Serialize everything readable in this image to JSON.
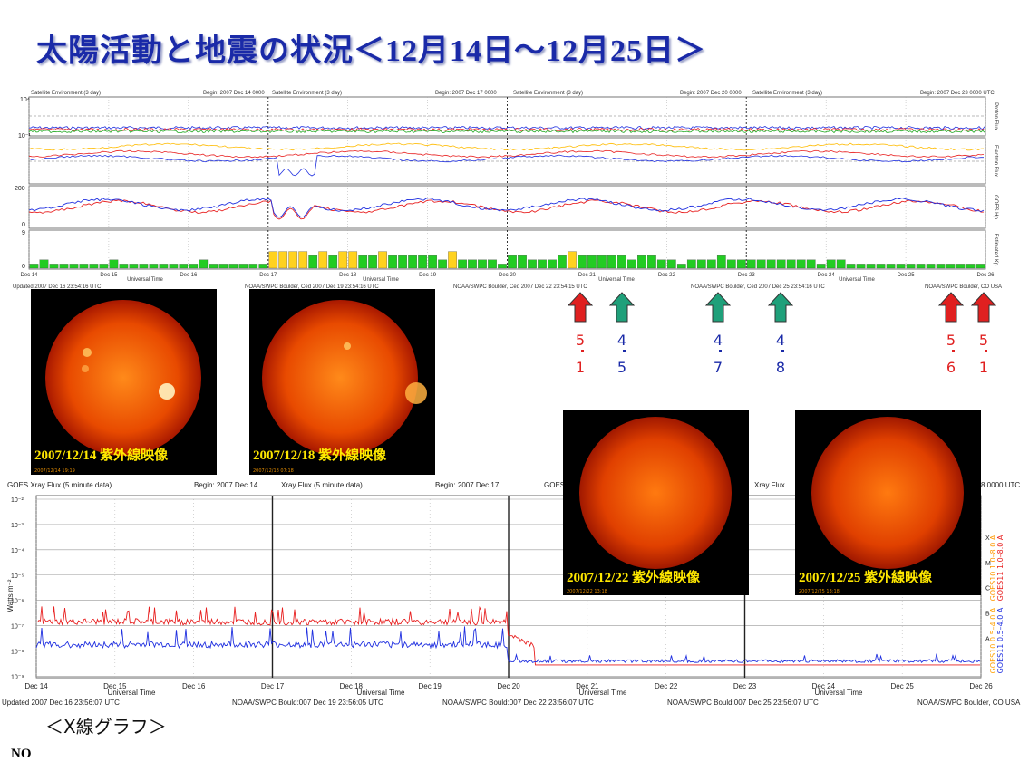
{
  "title": "太陽活動と地震の状況＜12月14日～12月25日＞",
  "top_chart": {
    "panel_headers": [
      {
        "left": "Satellite Environment (3 day)",
        "begin": "Begin:  2007 Dec 14 0000"
      },
      {
        "left": "Satellite Environment (3 day)",
        "begin": "Begin:  2007 Dec 17 0000"
      },
      {
        "left": "Satellite Environment (3 day)",
        "begin": "Begin:  2007 Dec 20 0000"
      },
      {
        "left": "Satellite Environment (3 day)",
        "begin": "Begin:  2007 Dec 23 0000 UTC"
      }
    ],
    "row_labels": [
      "Proton Flux",
      "Electron Flux",
      "GOES Hp",
      "Estimated Kp"
    ],
    "y_ticks": {
      "proton": [
        "10⁴",
        "10⁻¹"
      ],
      "hp": [
        "200",
        "0"
      ],
      "kp": [
        "9",
        "0"
      ]
    },
    "x_ticks": [
      "Dec 14",
      "Dec 15",
      "Dec 16",
      "Dec 17",
      "Dec 18",
      "Dec 19",
      "Dec 20",
      "Dec 21",
      "Dec 22",
      "Dec 23",
      "Dec 24",
      "Dec 25",
      "Dec 26"
    ],
    "axis_label": "Universal Time",
    "footers": [
      "Updated 2007 Dec 16 23:54:16 UTC",
      "NOAA/SWPC Boulder, Ced 2007 Dec 19 23:54:16 UTC",
      "NOAA/SWPC Boulder, Ced 2007 Dec 22 23:54:15 UTC",
      "NOAA/SWPC Boulder, Ced 2007 Dec 25 23:54:16 UTC",
      "NOAA/SWPC Boulder, CO USA"
    ],
    "kp_values": [
      1,
      2,
      1,
      1,
      1,
      1,
      1,
      1,
      2,
      1,
      1,
      1,
      1,
      1,
      1,
      1,
      1,
      2,
      1,
      1,
      1,
      1,
      1,
      1,
      4,
      4,
      4,
      4,
      3,
      4,
      3,
      4,
      4,
      3,
      3,
      4,
      3,
      3,
      3,
      3,
      3,
      2,
      4,
      2,
      2,
      2,
      2,
      1,
      3,
      3,
      2,
      2,
      2,
      3,
      4,
      3,
      3,
      3,
      3,
      3,
      2,
      3,
      3,
      2,
      2,
      1,
      2,
      2,
      2,
      3,
      2,
      2,
      2,
      2,
      2,
      2,
      2,
      2,
      2,
      1,
      2,
      2,
      1,
      1,
      1,
      1,
      1,
      1,
      1,
      1,
      1,
      1,
      1,
      1,
      1,
      1
    ],
    "kp_colors": {
      "quiet": "#22cc22",
      "unsettled": "#ffd21f"
    }
  },
  "arrows": [
    {
      "color": "red",
      "top": "5",
      "bottom": "1"
    },
    {
      "color": "green",
      "top": "4",
      "bottom": "5"
    },
    {
      "color": "green",
      "top": "4",
      "bottom": "7"
    },
    {
      "color": "green",
      "top": "4",
      "bottom": "8"
    },
    {
      "color": "red",
      "top": "5",
      "bottom": "6"
    },
    {
      "color": "red",
      "top": "5",
      "bottom": "1"
    }
  ],
  "sun_images": [
    {
      "label": "2007/12/14  紫外線映像",
      "stamp": "2007/12/14 19:19"
    },
    {
      "label": "2007/12/18  紫外線映像",
      "stamp": "2007/12/18 07:18"
    },
    {
      "label": "2007/12/22  紫外線映像",
      "stamp": "2007/12/22 13:18"
    },
    {
      "label": "2007/12/25  紫外線映像",
      "stamp": "2007/12/25 13:18"
    }
  ],
  "xray_chart": {
    "panel_headers": [
      {
        "left": "GOES Xray Flux (5 minute data)",
        "begin": "Begin:  2007 Dec 14"
      },
      {
        "left": "Xray Flux (5 minute data)",
        "begin": "Begin:  2007 Dec 17"
      },
      {
        "left": "GOES Xray",
        "begin": ""
      },
      {
        "left": "Xray Flux",
        "begin": "8 0000 UTC"
      }
    ],
    "y_ticks": [
      "10⁻²",
      "10⁻³",
      "10⁻⁴",
      "10⁻⁵",
      "10⁻⁶",
      "10⁻⁷",
      "10⁻⁸",
      "10⁻⁹"
    ],
    "y_label": "Watts m⁻²",
    "class_labels": [
      "X",
      "M",
      "C",
      "B",
      "A"
    ],
    "legend": [
      {
        "text": "GOES10  1.0–8.0 A",
        "color": "#ff9900"
      },
      {
        "text": "GOES11  1.0–8.0 A",
        "color": "#e82020"
      },
      {
        "text": "GOES10  0.5–4.0 A",
        "color": "#ffa000"
      },
      {
        "text": "GOES11  0.5–4.0 A",
        "color": "#2030e0"
      }
    ],
    "x_ticks": [
      "Dec 14",
      "Dec 15",
      "Dec 16",
      "Dec 17",
      "Dec 18",
      "Dec 19",
      "Dec 20",
      "Dec 21",
      "Dec 22",
      "Dec 23",
      "Dec 24",
      "Dec 25",
      "Dec 26"
    ],
    "axis_label": "Universal Time",
    "footers": [
      "Updated 2007 Dec 16 23:56:07 UTC",
      "NOAA/SWPC Bould:007 Dec 19 23:56:05 UTC",
      "NOAA/SWPC Bould:007 Dec 22 23:56:07 UTC",
      "NOAA/SWPC Bould:007 Dec 25 23:56:07 UTC",
      "NOAA/SWPC Boulder, CO USA"
    ]
  },
  "caption": "＜X線グラフ＞",
  "no_label": "NO"
}
